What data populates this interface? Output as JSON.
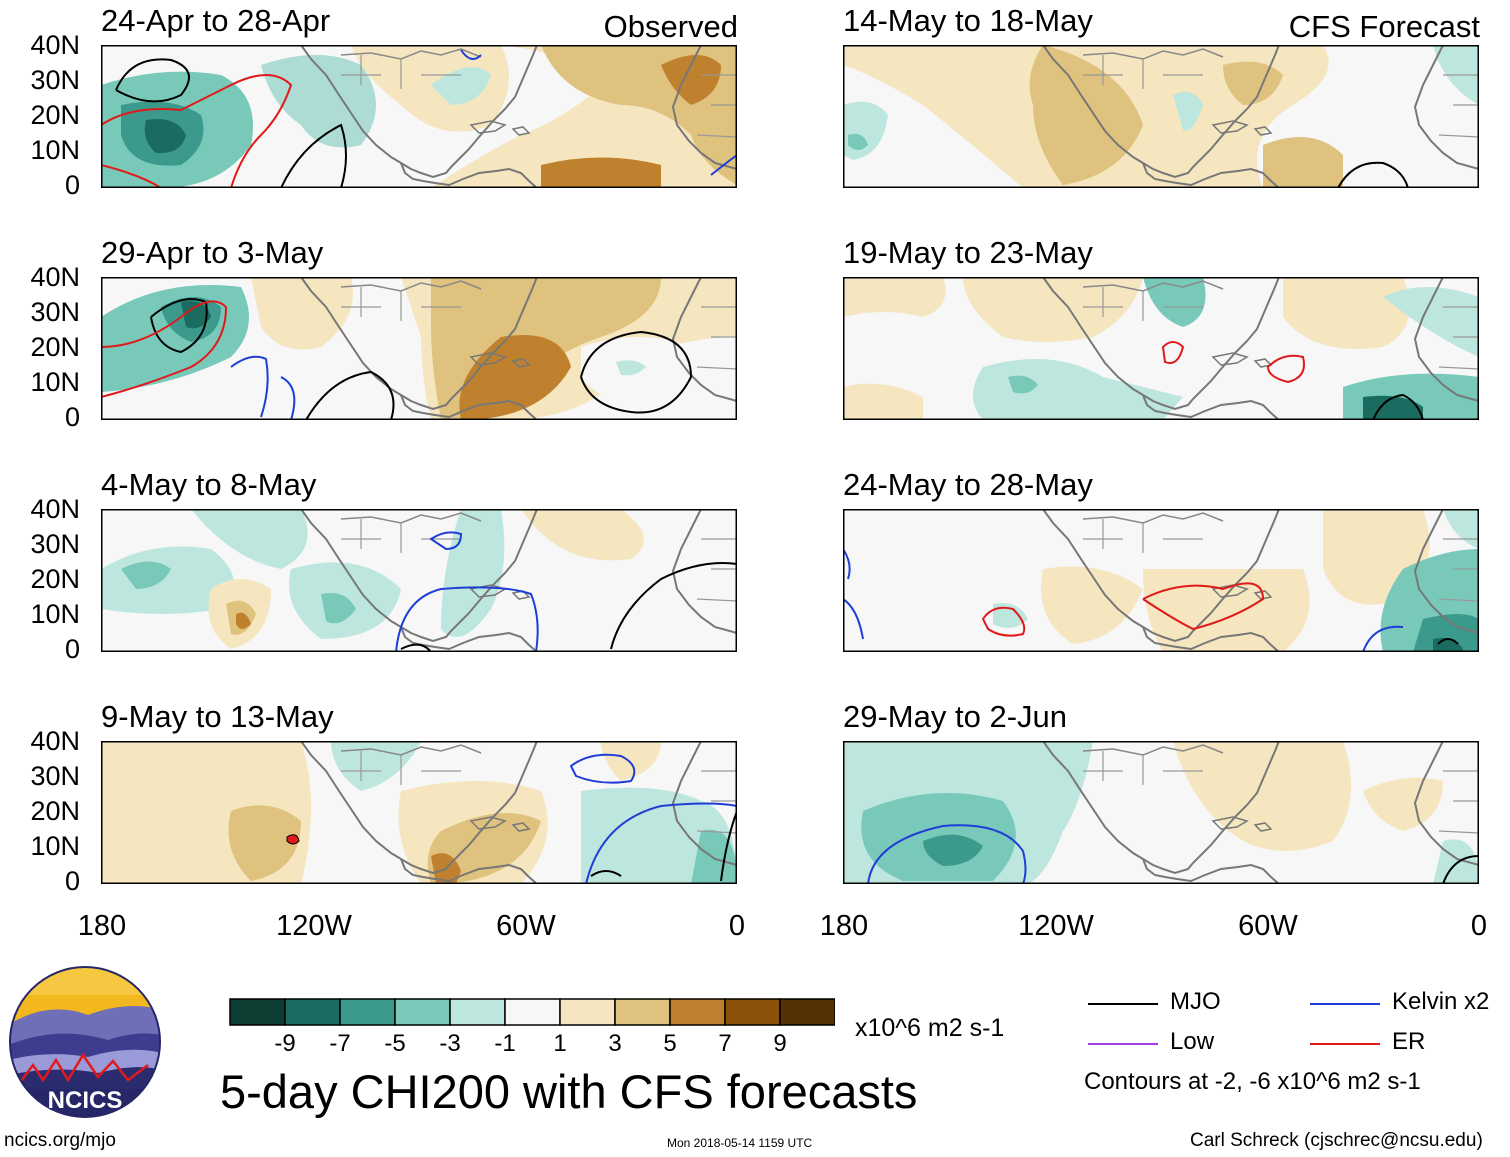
{
  "panels": [
    {
      "title": "24-Apr to 28-Apr",
      "tag": "Observed"
    },
    {
      "title": "29-Apr to 3-May",
      "tag": ""
    },
    {
      "title": "4-May to 8-May",
      "tag": ""
    },
    {
      "title": "9-May to 13-May",
      "tag": ""
    },
    {
      "title": "14-May to 18-May",
      "tag": "CFS Forecast"
    },
    {
      "title": "19-May to 23-May",
      "tag": ""
    },
    {
      "title": "24-May to 28-May",
      "tag": ""
    },
    {
      "title": "29-May to 2-Jun",
      "tag": ""
    }
  ],
  "y_ticks": [
    "40N",
    "30N",
    "20N",
    "10N",
    "0"
  ],
  "x_ticks": [
    "180",
    "120W",
    "60W",
    "0"
  ],
  "colorbar": {
    "colors": [
      "#0d3d33",
      "#1a6b60",
      "#3b9a8c",
      "#79c9bb",
      "#bde7de",
      "#f7f7f7",
      "#f5e6c0",
      "#dfc27d",
      "#bf812d",
      "#8c510a",
      "#543005"
    ],
    "labels": [
      "-9",
      "-7",
      "-5",
      "-3",
      "-1",
      "1",
      "3",
      "5",
      "7",
      "9"
    ],
    "units": "x10^6 m2 s-1"
  },
  "main_title": "5-day CHI200 with CFS forecasts",
  "legend": {
    "mjo": {
      "label": "MJO",
      "color": "#000000"
    },
    "kelvin": {
      "label": "Kelvin x2",
      "color": "#1f3ed6"
    },
    "low": {
      "label": "Low",
      "color": "#a23be0"
    },
    "er": {
      "label": "ER",
      "color": "#e01a1a"
    },
    "note": "Contours at -2, -6 x10^6 m2 s-1"
  },
  "logo": {
    "text": "NCICS"
  },
  "footer": {
    "url": "ncics.org/mjo",
    "timestamp": "Mon 2018-05-14 1159 UTC",
    "author": "Carl Schreck (cjschrec@ncsu.edu)"
  }
}
